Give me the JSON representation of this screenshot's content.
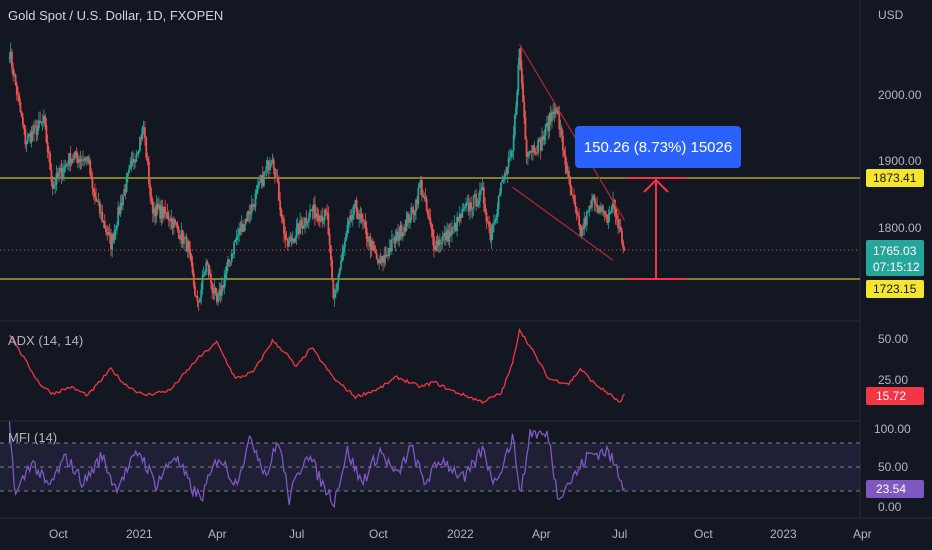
{
  "header": {
    "title": "Gold Spot / U.S. Dollar, 1D, FXOPEN",
    "currency": "USD"
  },
  "measure": {
    "label": "150.26 (8.73%) 15026"
  },
  "price_badges": {
    "resistance": "1873.41",
    "current_price": "1765.03",
    "countdown": "07:15:12",
    "support": "1723.15"
  },
  "indicators": {
    "adx_label": "ADX (14, 14)",
    "adx_value": "15.72",
    "mfi_label": "MFI (14)",
    "mfi_value": "23.54"
  },
  "colors": {
    "background": "#131722",
    "up": "#26a69a",
    "down": "#ef5350",
    "horizontal_lines": "#f5e52e",
    "adx": "#f23645",
    "mfi": "#7e57c2",
    "measure": "#2962ff",
    "channel": "#b22833"
  },
  "chart_data": [
    {
      "type": "candlestick",
      "title": "Gold Spot / U.S. Dollar, 1D, FXOPEN",
      "y_axis_ticks": [
        1800,
        1900,
        2000
      ],
      "y_axis_tick_labels": [
        "1800.00",
        "1900.00",
        "2000.00"
      ],
      "x_axis_ticks": [
        "Oct",
        "2021",
        "Apr",
        "Jul",
        "Oct",
        "2022",
        "Apr",
        "Jul",
        "Oct",
        "2023",
        "Apr"
      ],
      "horizontal_lines": [
        1873.41,
        1723.15
      ],
      "last_price": 1765.03,
      "countdown": "07:15:12",
      "measure_range": {
        "from": 1723.15,
        "to": 1873.41,
        "change": 150.26,
        "percent": "8.73%",
        "ticks": 15026,
        "label": "150.26 (8.73%) 15026"
      },
      "close_path": [
        [
          "2020-08-07",
          2065
        ],
        [
          "2020-08-25",
          1930
        ],
        [
          "2020-09-15",
          1958
        ],
        [
          "2020-09-25",
          1862
        ],
        [
          "2020-10-15",
          1905
        ],
        [
          "2020-11-04",
          1903
        ],
        [
          "2020-11-09",
          1855
        ],
        [
          "2020-11-30",
          1775
        ],
        [
          "2020-12-15",
          1855
        ],
        [
          "2021-01-06",
          1950
        ],
        [
          "2021-01-15",
          1830
        ],
        [
          "2021-02-05",
          1815
        ],
        [
          "2021-02-25",
          1770
        ],
        [
          "2021-03-08",
          1680
        ],
        [
          "2021-03-18",
          1745
        ],
        [
          "2021-03-30",
          1684
        ],
        [
          "2021-04-20",
          1780
        ],
        [
          "2021-05-10",
          1835
        ],
        [
          "2021-06-01",
          1910
        ],
        [
          "2021-06-17",
          1770
        ],
        [
          "2021-07-15",
          1825
        ],
        [
          "2021-08-02",
          1815
        ],
        [
          "2021-08-09",
          1690
        ],
        [
          "2021-08-25",
          1795
        ],
        [
          "2021-09-03",
          1830
        ],
        [
          "2021-09-30",
          1742
        ],
        [
          "2021-10-20",
          1785
        ],
        [
          "2021-11-08",
          1825
        ],
        [
          "2021-11-16",
          1865
        ],
        [
          "2021-12-01",
          1775
        ],
        [
          "2021-12-20",
          1790
        ],
        [
          "2022-01-05",
          1825
        ],
        [
          "2022-01-25",
          1850
        ],
        [
          "2022-02-03",
          1788
        ],
        [
          "2022-02-15",
          1860
        ],
        [
          "2022-02-28",
          1910
        ],
        [
          "2022-03-08",
          2065
        ],
        [
          "2022-03-16",
          1915
        ],
        [
          "2022-04-01",
          1925
        ],
        [
          "2022-04-18",
          1985
        ],
        [
          "2022-05-03",
          1865
        ],
        [
          "2022-05-16",
          1790
        ],
        [
          "2022-06-01",
          1845
        ],
        [
          "2022-06-14",
          1808
        ],
        [
          "2022-06-22",
          1835
        ],
        [
          "2022-07-05",
          1765
        ]
      ],
      "channel_lines": [
        [
          [
            "2022-03-08",
            2075
          ],
          [
            "2022-07-05",
            1810
          ]
        ],
        [
          [
            "2022-02-28",
            1860
          ],
          [
            "2022-06-22",
            1750
          ]
        ]
      ]
    },
    {
      "type": "line",
      "title": "ADX (14, 14)",
      "y_axis_tick_labels": [
        "25.00",
        "50.00"
      ],
      "last_value": 15.72,
      "series": [
        {
          "values": [
            [
              "2020-08-07",
              52
            ],
            [
              "2020-08-25",
              36
            ],
            [
              "2020-09-10",
              22
            ],
            [
              "2020-09-25",
              16
            ],
            [
              "2020-10-15",
              20
            ],
            [
              "2020-11-04",
              15
            ],
            [
              "2020-11-30",
              31
            ],
            [
              "2020-12-15",
              22
            ],
            [
              "2021-01-06",
              15
            ],
            [
              "2021-02-05",
              18
            ],
            [
              "2021-03-08",
              37
            ],
            [
              "2021-03-30",
              47
            ],
            [
              "2021-04-20",
              25
            ],
            [
              "2021-05-10",
              29
            ],
            [
              "2021-06-01",
              48
            ],
            [
              "2021-06-17",
              40
            ],
            [
              "2021-06-28",
              32
            ],
            [
              "2021-07-15",
              44
            ],
            [
              "2021-08-10",
              25
            ],
            [
              "2021-09-03",
              14
            ],
            [
              "2021-09-30",
              19
            ],
            [
              "2021-10-20",
              26
            ],
            [
              "2021-11-16",
              20
            ],
            [
              "2021-12-01",
              23
            ],
            [
              "2021-12-20",
              18
            ],
            [
              "2022-01-25",
              11
            ],
            [
              "2022-02-15",
              16
            ],
            [
              "2022-02-28",
              34
            ],
            [
              "2022-03-08",
              55
            ],
            [
              "2022-03-25",
              40
            ],
            [
              "2022-04-10",
              25
            ],
            [
              "2022-05-03",
              22
            ],
            [
              "2022-05-16",
              31
            ],
            [
              "2022-06-01",
              22
            ],
            [
              "2022-06-22",
              14
            ],
            [
              "2022-06-30",
              10
            ],
            [
              "2022-07-05",
              15.72
            ]
          ]
        }
      ]
    },
    {
      "type": "line",
      "title": "MFI (14)",
      "y_axis_tick_labels": [
        "0.00",
        "50.00",
        "100.00"
      ],
      "band": [
        20,
        80
      ],
      "last_value": 23.54,
      "series": [
        {
          "values": [
            [
              "2020-08-07",
              100
            ],
            [
              "2020-08-14",
              14
            ],
            [
              "2020-09-01",
              58
            ],
            [
              "2020-09-20",
              24
            ],
            [
              "2020-10-10",
              62
            ],
            [
              "2020-10-30",
              30
            ],
            [
              "2020-11-20",
              64
            ],
            [
              "2020-12-05",
              24
            ],
            [
              "2021-01-01",
              70
            ],
            [
              "2021-01-20",
              28
            ],
            [
              "2021-02-10",
              65
            ],
            [
              "2021-03-01",
              24
            ],
            [
              "2021-03-12",
              10
            ],
            [
              "2021-04-01",
              64
            ],
            [
              "2021-04-20",
              30
            ],
            [
              "2021-05-08",
              86
            ],
            [
              "2021-05-25",
              40
            ],
            [
              "2021-06-08",
              84
            ],
            [
              "2021-06-20",
              10
            ],
            [
              "2021-07-10",
              70
            ],
            [
              "2021-07-28",
              28
            ],
            [
              "2021-08-10",
              8
            ],
            [
              "2021-08-25",
              70
            ],
            [
              "2021-09-10",
              30
            ],
            [
              "2021-10-01",
              70
            ],
            [
              "2021-10-20",
              38
            ],
            [
              "2021-11-05",
              75
            ],
            [
              "2021-11-20",
              30
            ],
            [
              "2021-12-10",
              60
            ],
            [
              "2022-01-05",
              34
            ],
            [
              "2022-01-25",
              72
            ],
            [
              "2022-02-08",
              30
            ],
            [
              "2022-02-28",
              86
            ],
            [
              "2022-03-10",
              16
            ],
            [
              "2022-03-20",
              94
            ],
            [
              "2022-04-10",
              88
            ],
            [
              "2022-04-20",
              14
            ],
            [
              "2022-05-10",
              40
            ],
            [
              "2022-05-25",
              65
            ],
            [
              "2022-06-15",
              70
            ],
            [
              "2022-06-28",
              44
            ],
            [
              "2022-07-05",
              23.54
            ]
          ]
        }
      ]
    }
  ]
}
